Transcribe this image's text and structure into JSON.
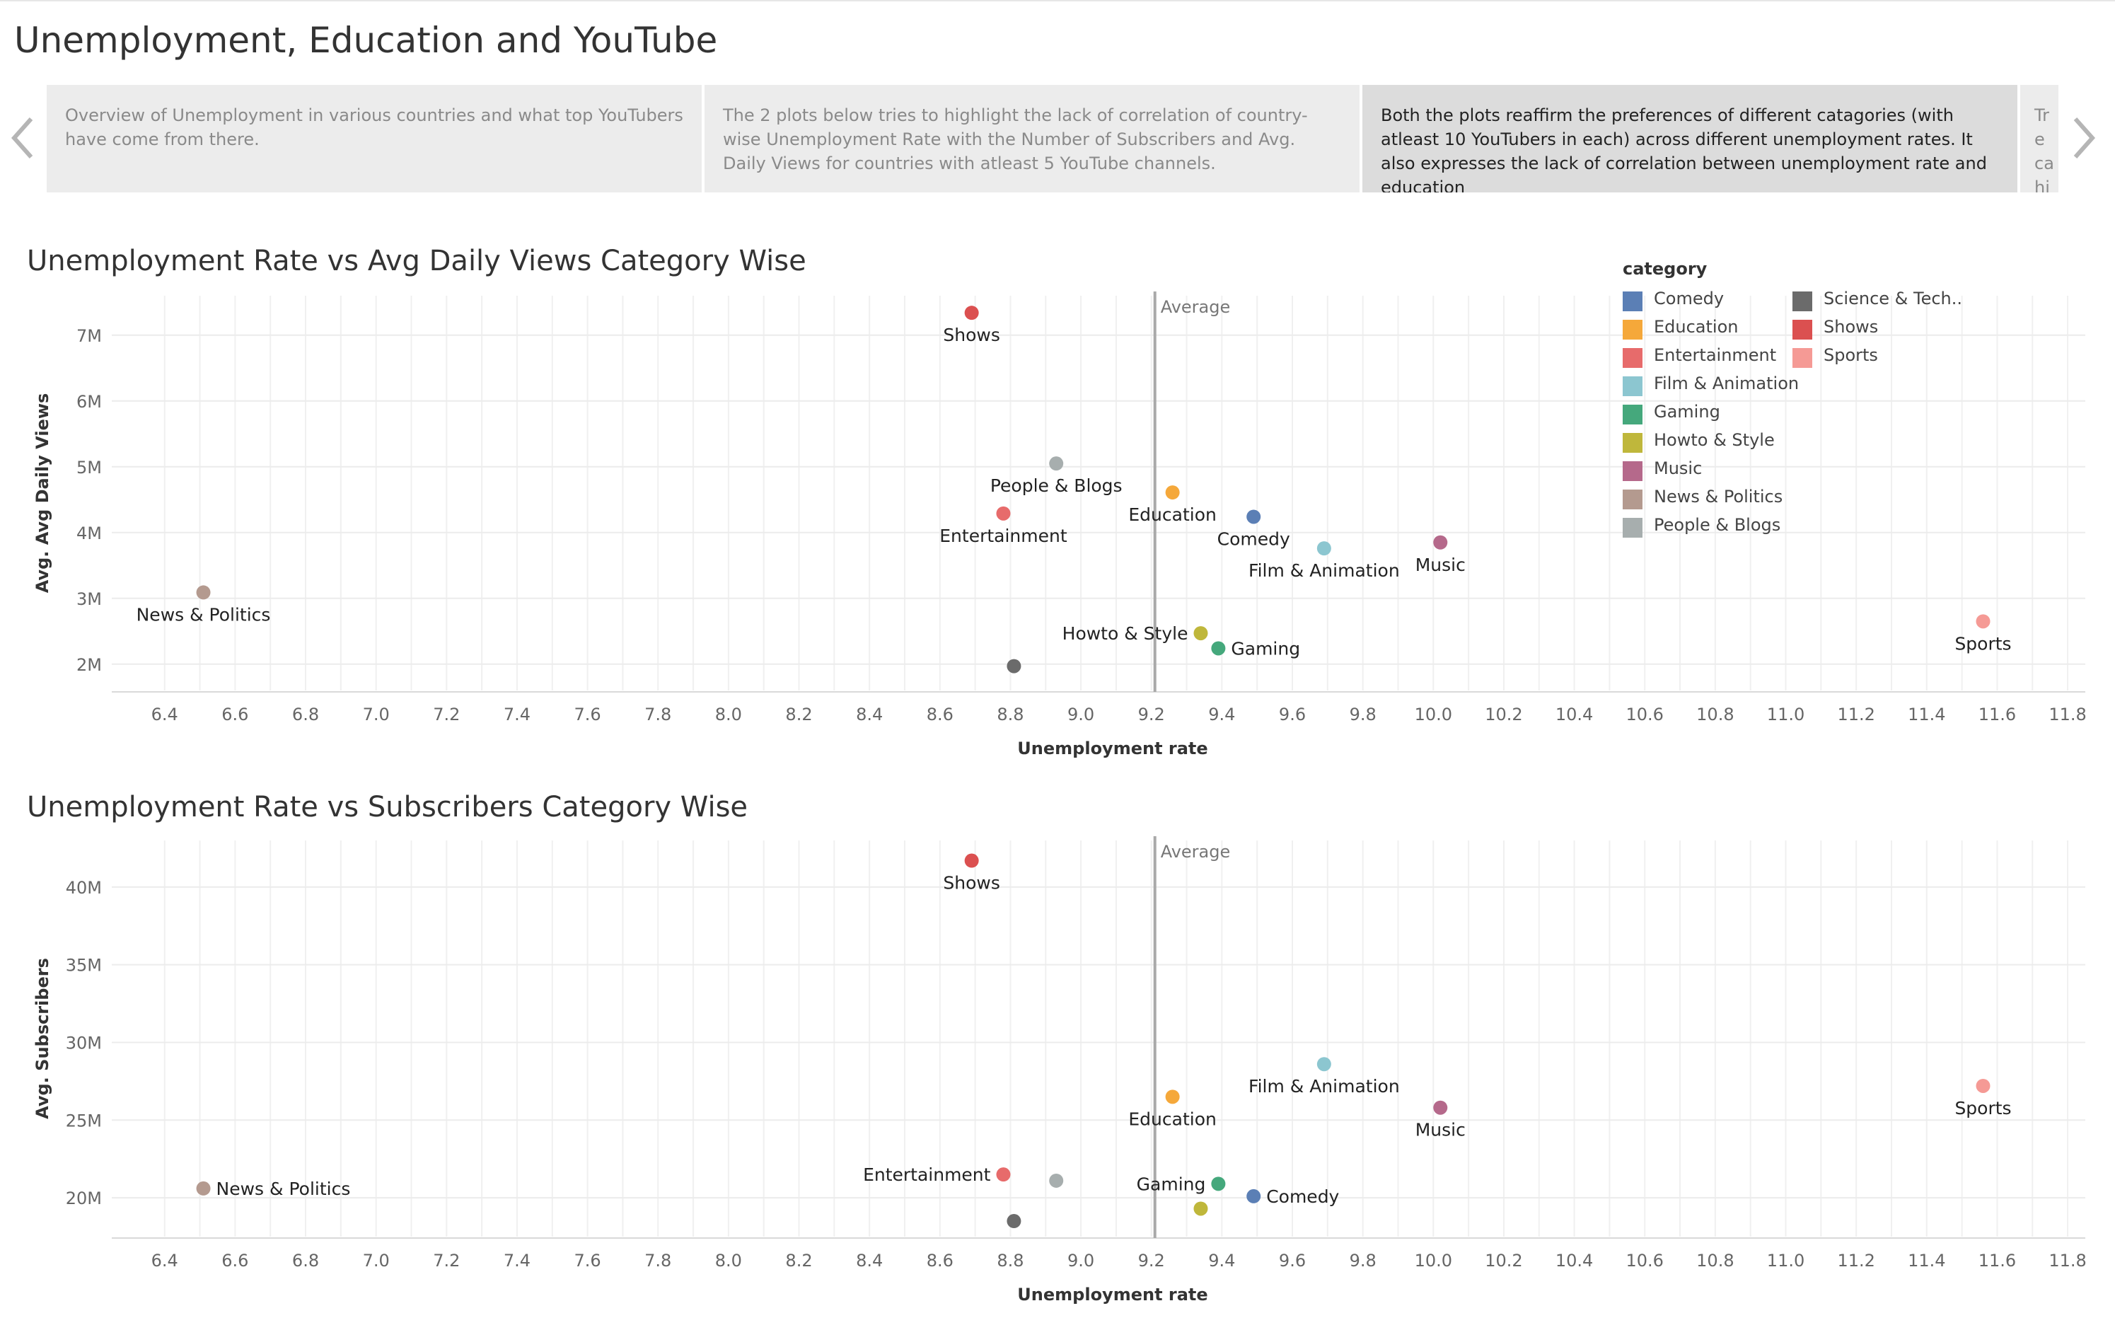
{
  "page": {
    "title": "Unemployment, Education and YouTube"
  },
  "story": {
    "points": [
      {
        "text": "Overview of Unemployment in various countries and what top YouTubers have come from there."
      },
      {
        "text": "The 2 plots below tries to highlight the lack of correlation of country-wise Unemployment Rate with the Number of Subscribers and Avg. Daily Views for countries with atleast 5 YouTube channels."
      },
      {
        "text": "Both the plots reaffirm the preferences of different catagories (with atleast 10 YouTubers in each)  across different unemployment rates. It also expresses the lack of correlation between unemployment rate and education"
      },
      {
        "text": "Tre ca hig"
      }
    ],
    "active_index": 2,
    "prev_icon": "chevron-left-icon",
    "next_icon": "chevron-right-icon"
  },
  "legend": {
    "title": "category",
    "items": [
      {
        "label": "Comedy",
        "color": "#5b7fb5"
      },
      {
        "label": "Education",
        "color": "#f5a83a"
      },
      {
        "label": "Entertainment",
        "color": "#e76b6b"
      },
      {
        "label": "Film & Animation",
        "color": "#8cc6d0"
      },
      {
        "label": "Gaming",
        "color": "#45a87c"
      },
      {
        "label": "Howto & Style",
        "color": "#bfb73b"
      },
      {
        "label": "Music",
        "color": "#b5698b"
      },
      {
        "label": "News & Politics",
        "color": "#b49a8f"
      },
      {
        "label": "People & Blogs",
        "color": "#a7aeae"
      },
      {
        "label": "Science & Tech..",
        "color": "#6b6b6b"
      },
      {
        "label": "Shows",
        "color": "#db5050"
      },
      {
        "label": "Sports",
        "color": "#f59a95"
      }
    ]
  },
  "chart_data": [
    {
      "type": "scatter",
      "title": "Unemployment Rate vs Avg Daily Views Category Wise",
      "xlabel": "Unemployment rate",
      "ylabel": "Avg. Avg Daily Views",
      "xlim": [
        6.25,
        11.85
      ],
      "ylim": [
        1.6,
        7.6
      ],
      "x_ticks": [
        6.4,
        6.6,
        6.8,
        7.0,
        7.2,
        7.4,
        7.6,
        7.8,
        8.0,
        8.2,
        8.4,
        8.6,
        8.8,
        9.0,
        9.2,
        9.4,
        9.6,
        9.8,
        10.0,
        10.2,
        10.4,
        10.6,
        10.8,
        11.0,
        11.2,
        11.4,
        11.6,
        11.8
      ],
      "x_tick_labels": [
        "6.4",
        "6.6",
        "6.8",
        "7.0",
        "7.2",
        "7.4",
        "7.6",
        "7.8",
        "8.0",
        "8.2",
        "8.4",
        "8.6",
        "8.8",
        "9.0",
        "9.2",
        "9.4",
        "9.6",
        "9.8",
        "10.0",
        "10.2",
        "10.4",
        "10.6",
        "10.8",
        "11.0",
        "11.2",
        "11.4",
        "11.6",
        "11.8"
      ],
      "y_ticks": [
        2,
        3,
        4,
        5,
        6,
        7
      ],
      "y_tick_labels": [
        "2M",
        "3M",
        "4M",
        "5M",
        "6M",
        "7M"
      ],
      "reference_line": {
        "x": 9.21,
        "label": "Average"
      },
      "grid": true,
      "points": [
        {
          "category": "Comedy",
          "x": 9.49,
          "y": 4.24,
          "label": "Comedy",
          "label_pos": "below"
        },
        {
          "category": "Education",
          "x": 9.26,
          "y": 4.61,
          "label": "Education",
          "label_pos": "below"
        },
        {
          "category": "Entertainment",
          "x": 8.78,
          "y": 4.29,
          "label": "Entertainment",
          "label_pos": "below"
        },
        {
          "category": "Film & Animation",
          "x": 9.69,
          "y": 3.76,
          "label": "Film & Animation",
          "label_pos": "below"
        },
        {
          "category": "Gaming",
          "x": 9.39,
          "y": 2.24,
          "label": "Gaming",
          "label_pos": "right"
        },
        {
          "category": "Howto & Style",
          "x": 9.34,
          "y": 2.47,
          "label": "Howto & Style",
          "label_pos": "left"
        },
        {
          "category": "Music",
          "x": 10.02,
          "y": 3.85,
          "label": "Music",
          "label_pos": "below"
        },
        {
          "category": "News & Politics",
          "x": 6.51,
          "y": 3.09,
          "label": "News & Politics",
          "label_pos": "below"
        },
        {
          "category": "People & Blogs",
          "x": 8.93,
          "y": 5.05,
          "label": "People & Blogs",
          "label_pos": "below"
        },
        {
          "category": "Science & Tech..",
          "x": 8.81,
          "y": 1.97,
          "label": "",
          "label_pos": "none"
        },
        {
          "category": "Shows",
          "x": 8.69,
          "y": 7.34,
          "label": "Shows",
          "label_pos": "below"
        },
        {
          "category": "Sports",
          "x": 11.56,
          "y": 2.65,
          "label": "Sports",
          "label_pos": "below"
        }
      ]
    },
    {
      "type": "scatter",
      "title": "Unemployment Rate vs Subscribers Category Wise",
      "xlabel": "Unemployment rate",
      "ylabel": "Avg. Subscribers",
      "xlim": [
        6.25,
        11.85
      ],
      "ylim": [
        17.5,
        43.0
      ],
      "x_ticks": [
        6.4,
        6.6,
        6.8,
        7.0,
        7.2,
        7.4,
        7.6,
        7.8,
        8.0,
        8.2,
        8.4,
        8.6,
        8.8,
        9.0,
        9.2,
        9.4,
        9.6,
        9.8,
        10.0,
        10.2,
        10.4,
        10.6,
        10.8,
        11.0,
        11.2,
        11.4,
        11.6,
        11.8
      ],
      "x_tick_labels": [
        "6.4",
        "6.6",
        "6.8",
        "7.0",
        "7.2",
        "7.4",
        "7.6",
        "7.8",
        "8.0",
        "8.2",
        "8.4",
        "8.6",
        "8.8",
        "9.0",
        "9.2",
        "9.4",
        "9.6",
        "9.8",
        "10.0",
        "10.2",
        "10.4",
        "10.6",
        "10.8",
        "11.0",
        "11.2",
        "11.4",
        "11.6",
        "11.8"
      ],
      "y_ticks": [
        20,
        25,
        30,
        35,
        40
      ],
      "y_tick_labels": [
        "20M",
        "25M",
        "30M",
        "35M",
        "40M"
      ],
      "reference_line": {
        "x": 9.21,
        "label": "Average"
      },
      "grid": true,
      "points": [
        {
          "category": "Comedy",
          "x": 9.49,
          "y": 20.1,
          "label": "Comedy",
          "label_pos": "right"
        },
        {
          "category": "Education",
          "x": 9.26,
          "y": 26.5,
          "label": "Education",
          "label_pos": "below"
        },
        {
          "category": "Entertainment",
          "x": 8.78,
          "y": 21.5,
          "label": "Entertainment",
          "label_pos": "left"
        },
        {
          "category": "Film & Animation",
          "x": 9.69,
          "y": 28.6,
          "label": "Film & Animation",
          "label_pos": "below"
        },
        {
          "category": "Gaming",
          "x": 9.39,
          "y": 20.9,
          "label": "Gaming",
          "label_pos": "left"
        },
        {
          "category": "Howto & Style",
          "x": 9.34,
          "y": 19.3,
          "label": "",
          "label_pos": "none"
        },
        {
          "category": "Music",
          "x": 10.02,
          "y": 25.8,
          "label": "Music",
          "label_pos": "below"
        },
        {
          "category": "News & Politics",
          "x": 6.51,
          "y": 20.6,
          "label": "News & Politics",
          "label_pos": "right"
        },
        {
          "category": "People & Blogs",
          "x": 8.93,
          "y": 21.1,
          "label": "",
          "label_pos": "none"
        },
        {
          "category": "Science & Tech..",
          "x": 8.81,
          "y": 18.5,
          "label": "",
          "label_pos": "none"
        },
        {
          "category": "Shows",
          "x": 8.69,
          "y": 41.7,
          "label": "Shows",
          "label_pos": "below"
        },
        {
          "category": "Sports",
          "x": 11.56,
          "y": 27.2,
          "label": "Sports",
          "label_pos": "below"
        }
      ]
    }
  ]
}
